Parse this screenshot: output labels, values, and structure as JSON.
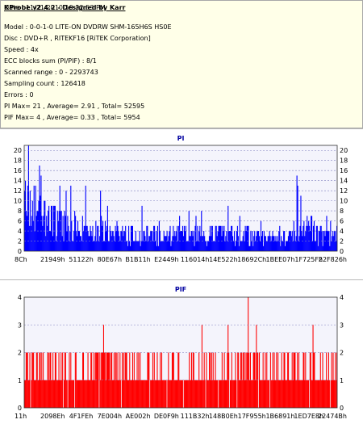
{
  "info": {
    "title": "KProbe v2.4.2 - Designed by Karr",
    "date": "Date : 11/21/2010 10:22:53 PM",
    "lines": [
      "Model : 0-0-1-0 LITE-ON DVDRW SHM-165H6S HS0E",
      "Disc : DVD+R , RITEKF16 [RiTEK Corporation]",
      "Speed : 4x",
      "ECC blocks sum (PI/PIF) : 8/1",
      "Scanned range : 0 - 2293743",
      "Sampling count : 126418",
      "Errors : 0",
      "PI Max= 21 , Average= 2.91 , Total= 52595",
      "PIF Max= 4 , Average= 0.33 , Total= 5954"
    ]
  },
  "colors": {
    "pi": "#0000ff",
    "pif": "#ff0000",
    "title": "#0000a0",
    "grid": "#8080c0"
  },
  "chart_data": [
    {
      "type": "bar",
      "title": "PI",
      "ylim": [
        0,
        21
      ],
      "yticks": [
        0,
        2,
        4,
        6,
        8,
        10,
        12,
        14,
        16,
        18,
        20
      ],
      "xticks": [
        "8Ch",
        "21949h",
        "51122h",
        "80E67h",
        "B1B11h",
        "E2449h",
        "116014h",
        "14E522h",
        "18692Ch",
        "1BEE07h",
        "1F725Fh",
        "22F826h"
      ],
      "grid": true,
      "max": 21,
      "average": 2.91,
      "profile": [
        12,
        11,
        10,
        9,
        8,
        7,
        6,
        6,
        6,
        6,
        5.5,
        5.5,
        5,
        5,
        5,
        5,
        4.5,
        4.5,
        4.5,
        4.5,
        4.5,
        4.5,
        4.5,
        4,
        4,
        4,
        4.5,
        4,
        4,
        4,
        4,
        4,
        4,
        4,
        4,
        4,
        3.5,
        3.5,
        3.5,
        3.5,
        3.5,
        3.5,
        3.5,
        3.5,
        4,
        4,
        5,
        6,
        5,
        4,
        3.5,
        3.5,
        4
      ]
    },
    {
      "type": "bar",
      "title": "PIF",
      "ylim": [
        0,
        4
      ],
      "yticks": [
        0,
        1,
        2,
        3,
        4
      ],
      "xticks": [
        "11h",
        "2098Eh",
        "4F1FEh",
        "7E004h",
        "AE002h",
        "DE0F9h",
        "111B32h",
        "148B0Eh",
        "17F955h",
        "1B6891h",
        "1ED7E8h",
        "22474Bh"
      ],
      "grid": true,
      "max": 4,
      "average": 0.33
    }
  ]
}
